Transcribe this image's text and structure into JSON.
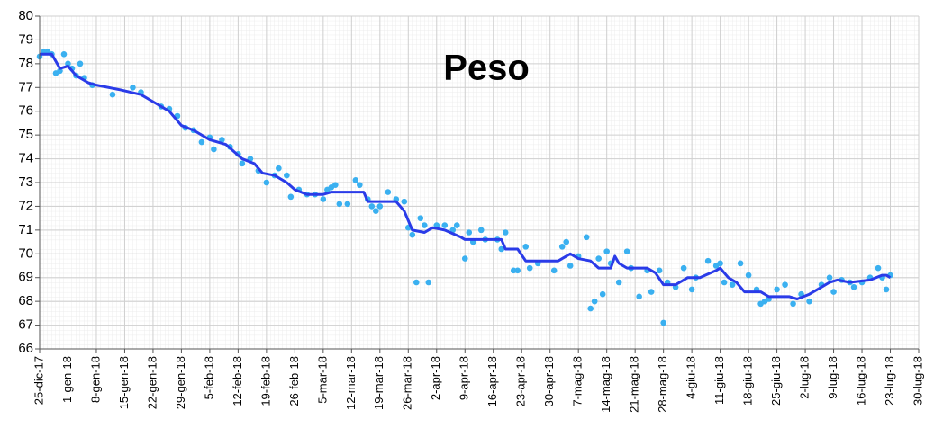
{
  "chart_data": {
    "type": "scatter-line",
    "title": "Peso",
    "xlim": [
      "2017-12-25",
      "2018-07-30"
    ],
    "xticks": [
      {
        "value": "2017-12-25",
        "label": "25-dic-17"
      },
      {
        "value": "2018-01-01",
        "label": "1-gen-18"
      },
      {
        "value": "2018-01-08",
        "label": "8-gen-18"
      },
      {
        "value": "2018-01-15",
        "label": "15-gen-18"
      },
      {
        "value": "2018-01-22",
        "label": "22-gen-18"
      },
      {
        "value": "2018-01-29",
        "label": "29-gen-18"
      },
      {
        "value": "2018-02-05",
        "label": "5-feb-18"
      },
      {
        "value": "2018-02-12",
        "label": "12-feb-18"
      },
      {
        "value": "2018-02-19",
        "label": "19-feb-18"
      },
      {
        "value": "2018-02-26",
        "label": "26-feb-18"
      },
      {
        "value": "2018-03-05",
        "label": "5-mar-18"
      },
      {
        "value": "2018-03-12",
        "label": "12-mar-18"
      },
      {
        "value": "2018-03-19",
        "label": "19-mar-18"
      },
      {
        "value": "2018-03-26",
        "label": "26-mar-18"
      },
      {
        "value": "2018-04-02",
        "label": "2-apr-18"
      },
      {
        "value": "2018-04-09",
        "label": "9-apr-18"
      },
      {
        "value": "2018-04-16",
        "label": "16-apr-18"
      },
      {
        "value": "2018-04-23",
        "label": "23-apr-18"
      },
      {
        "value": "2018-04-30",
        "label": "30-apr-18"
      },
      {
        "value": "2018-05-07",
        "label": "7-mag-18"
      },
      {
        "value": "2018-05-14",
        "label": "14-mag-18"
      },
      {
        "value": "2018-05-21",
        "label": "21-mag-18"
      },
      {
        "value": "2018-05-28",
        "label": "28-mag-18"
      },
      {
        "value": "2018-06-04",
        "label": "4-giu-18"
      },
      {
        "value": "2018-06-11",
        "label": "11-giu-18"
      },
      {
        "value": "2018-06-18",
        "label": "18-giu-18"
      },
      {
        "value": "2018-06-25",
        "label": "25-giu-18"
      },
      {
        "value": "2018-07-02",
        "label": "2-lug-18"
      },
      {
        "value": "2018-07-09",
        "label": "9-lug-18"
      },
      {
        "value": "2018-07-16",
        "label": "16-lug-18"
      },
      {
        "value": "2018-07-23",
        "label": "23-lug-18"
      },
      {
        "value": "2018-07-30",
        "label": "30-lug-18"
      }
    ],
    "ylim": [
      66,
      80
    ],
    "yticks": [
      66,
      67,
      68,
      69,
      70,
      71,
      72,
      73,
      74,
      75,
      76,
      77,
      78,
      79,
      80
    ],
    "grid": true,
    "series": [
      {
        "kind": "scatter",
        "color": "#3ab0f0",
        "x": [
          "2017-12-25",
          "2017-12-26",
          "2017-12-27",
          "2017-12-28",
          "2017-12-29",
          "2017-12-30",
          "2017-12-31",
          "2018-01-01",
          "2018-01-02",
          "2018-01-03",
          "2018-01-04",
          "2018-01-05",
          "2018-01-07",
          "2018-01-12",
          "2018-01-17",
          "2018-01-19",
          "2018-01-24",
          "2018-01-26",
          "2018-01-28",
          "2018-01-30",
          "2018-02-01",
          "2018-02-03",
          "2018-02-05",
          "2018-02-06",
          "2018-02-08",
          "2018-02-10",
          "2018-02-12",
          "2018-02-13",
          "2018-02-15",
          "2018-02-17",
          "2018-02-19",
          "2018-02-21",
          "2018-02-22",
          "2018-02-24",
          "2018-02-25",
          "2018-02-27",
          "2018-03-01",
          "2018-03-03",
          "2018-03-05",
          "2018-03-06",
          "2018-03-07",
          "2018-03-08",
          "2018-03-09",
          "2018-03-11",
          "2018-03-13",
          "2018-03-14",
          "2018-03-16",
          "2018-03-17",
          "2018-03-18",
          "2018-03-19",
          "2018-03-21",
          "2018-03-23",
          "2018-03-25",
          "2018-03-26",
          "2018-03-27",
          "2018-03-28",
          "2018-03-29",
          "2018-03-30",
          "2018-03-31",
          "2018-04-02",
          "2018-04-04",
          "2018-04-06",
          "2018-04-07",
          "2018-04-09",
          "2018-04-10",
          "2018-04-11",
          "2018-04-13",
          "2018-04-14",
          "2018-04-17",
          "2018-04-18",
          "2018-04-19",
          "2018-04-21",
          "2018-04-22",
          "2018-04-24",
          "2018-04-25",
          "2018-04-27",
          "2018-05-01",
          "2018-05-03",
          "2018-05-04",
          "2018-05-05",
          "2018-05-07",
          "2018-05-09",
          "2018-05-10",
          "2018-05-11",
          "2018-05-12",
          "2018-05-13",
          "2018-05-14",
          "2018-05-15",
          "2018-05-17",
          "2018-05-19",
          "2018-05-20",
          "2018-05-22",
          "2018-05-24",
          "2018-05-25",
          "2018-05-27",
          "2018-05-28",
          "2018-05-29",
          "2018-05-31",
          "2018-06-02",
          "2018-06-04",
          "2018-06-05",
          "2018-06-08",
          "2018-06-10",
          "2018-06-11",
          "2018-06-12",
          "2018-06-14",
          "2018-06-16",
          "2018-06-18",
          "2018-06-20",
          "2018-06-21",
          "2018-06-22",
          "2018-06-23",
          "2018-06-25",
          "2018-06-27",
          "2018-06-29",
          "2018-07-01",
          "2018-07-03",
          "2018-07-06",
          "2018-07-08",
          "2018-07-09",
          "2018-07-11",
          "2018-07-13",
          "2018-07-14",
          "2018-07-16",
          "2018-07-18",
          "2018-07-20",
          "2018-07-21",
          "2018-07-22",
          "2018-07-23"
        ],
        "values": [
          78.3,
          78.5,
          78.5,
          78.4,
          77.6,
          77.7,
          78.4,
          78.0,
          77.8,
          77.5,
          78.0,
          77.4,
          77.1,
          76.7,
          77.0,
          76.8,
          76.2,
          76.1,
          75.8,
          75.3,
          75.2,
          74.7,
          74.9,
          74.4,
          74.8,
          74.5,
          74.2,
          73.8,
          74.0,
          73.5,
          73.0,
          73.3,
          73.6,
          73.3,
          72.4,
          72.7,
          72.5,
          72.5,
          72.3,
          72.7,
          72.8,
          72.9,
          72.1,
          72.1,
          73.1,
          72.9,
          72.3,
          72.0,
          71.8,
          72.0,
          72.6,
          72.3,
          72.2,
          71.1,
          70.8,
          68.8,
          71.5,
          71.2,
          68.8,
          71.2,
          71.2,
          71.0,
          71.2,
          69.8,
          70.9,
          70.5,
          71.0,
          70.6,
          70.6,
          70.2,
          70.9,
          69.3,
          69.3,
          70.3,
          69.4,
          69.6,
          69.3,
          70.3,
          70.5,
          69.5,
          69.9,
          70.7,
          67.7,
          68.0,
          69.8,
          68.3,
          70.1,
          69.6,
          68.8,
          70.1,
          69.4,
          68.2,
          69.3,
          68.4,
          69.3,
          67.1,
          68.8,
          68.6,
          69.4,
          68.5,
          69.0,
          69.7,
          69.5,
          69.6,
          68.8,
          68.7,
          69.6,
          69.1,
          68.5,
          67.9,
          68.0,
          68.1,
          68.5,
          68.7,
          67.9,
          68.3,
          68.0,
          68.7,
          69.0,
          68.4,
          68.9,
          68.8,
          68.6,
          68.8,
          69.0,
          69.4,
          69.0,
          68.5,
          69.1
        ]
      },
      {
        "kind": "line",
        "color": "#2a3be8",
        "x": [
          "2017-12-25",
          "2017-12-28",
          "2017-12-30",
          "2018-01-01",
          "2018-01-03",
          "2018-01-06",
          "2018-01-08",
          "2018-01-14",
          "2018-01-19",
          "2018-01-22",
          "2018-01-26",
          "2018-01-29",
          "2018-02-01",
          "2018-02-05",
          "2018-02-09",
          "2018-02-13",
          "2018-02-16",
          "2018-02-18",
          "2018-02-21",
          "2018-02-24",
          "2018-02-26",
          "2018-03-01",
          "2018-03-05",
          "2018-03-07",
          "2018-03-15",
          "2018-03-16",
          "2018-03-23",
          "2018-03-25",
          "2018-03-27",
          "2018-03-30",
          "2018-04-01",
          "2018-04-04",
          "2018-04-08",
          "2018-04-09",
          "2018-04-18",
          "2018-04-19",
          "2018-04-22",
          "2018-04-24",
          "2018-05-02",
          "2018-05-05",
          "2018-05-07",
          "2018-05-10",
          "2018-05-12",
          "2018-05-15",
          "2018-05-16",
          "2018-05-17",
          "2018-05-19",
          "2018-05-24",
          "2018-05-26",
          "2018-05-28",
          "2018-05-31",
          "2018-06-03",
          "2018-06-06",
          "2018-06-10",
          "2018-06-11",
          "2018-06-13",
          "2018-06-15",
          "2018-06-17",
          "2018-06-21",
          "2018-06-23",
          "2018-06-28",
          "2018-06-30",
          "2018-07-03",
          "2018-07-06",
          "2018-07-08",
          "2018-07-10",
          "2018-07-13",
          "2018-07-18",
          "2018-07-21",
          "2018-07-22",
          "2018-07-23"
        ],
        "values": [
          78.4,
          78.4,
          77.8,
          77.9,
          77.5,
          77.2,
          77.1,
          76.9,
          76.7,
          76.4,
          76.0,
          75.4,
          75.2,
          74.8,
          74.6,
          74.0,
          73.8,
          73.4,
          73.3,
          73.0,
          72.7,
          72.5,
          72.5,
          72.6,
          72.6,
          72.2,
          72.2,
          71.8,
          71.0,
          70.9,
          71.1,
          71.0,
          70.7,
          70.6,
          70.6,
          70.2,
          70.2,
          69.7,
          69.7,
          70.0,
          69.8,
          69.7,
          69.4,
          69.4,
          69.9,
          69.6,
          69.4,
          69.4,
          69.2,
          68.7,
          68.7,
          69.0,
          69.0,
          69.3,
          69.4,
          69.0,
          68.8,
          68.4,
          68.4,
          68.2,
          68.2,
          68.1,
          68.3,
          68.6,
          68.8,
          68.9,
          68.8,
          68.9,
          69.1,
          69.1,
          69.0
        ]
      }
    ]
  }
}
